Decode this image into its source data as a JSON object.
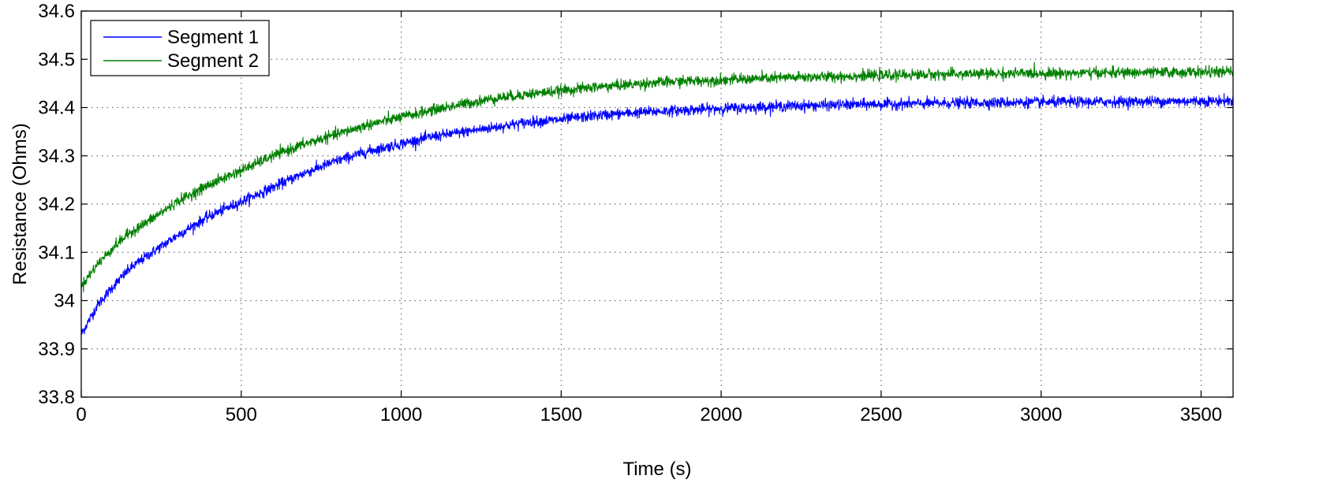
{
  "chart_data": {
    "type": "line",
    "title": "",
    "xlabel": "Time (s)",
    "ylabel": "Resistance (Ohms)",
    "xlim": [
      0,
      3600
    ],
    "ylim": [
      33.8,
      34.6
    ],
    "xticks": [
      0,
      500,
      1000,
      1500,
      2000,
      2500,
      3000,
      3500
    ],
    "xtick_labels": [
      "0",
      "500",
      "1000",
      "1500",
      "2000",
      "2500",
      "3000",
      "3500"
    ],
    "yticks": [
      33.8,
      33.9,
      34.0,
      34.1,
      34.2,
      34.3,
      34.4,
      34.5,
      34.6
    ],
    "ytick_labels": [
      "33.8",
      "33.9",
      "34",
      "34.1",
      "34.2",
      "34.3",
      "34.4",
      "34.5",
      "34.6"
    ],
    "grid": true,
    "legend_position": "top-left",
    "noise_amplitude": 0.012,
    "series": [
      {
        "name": "Segment 1",
        "color": "#0000ff",
        "x": [
          0,
          50,
          100,
          150,
          200,
          300,
          400,
          500,
          600,
          700,
          800,
          900,
          1000,
          1100,
          1200,
          1300,
          1400,
          1500,
          1600,
          1700,
          1800,
          1900,
          2000,
          2200,
          2400,
          2600,
          2800,
          3000,
          3200,
          3400,
          3600
        ],
        "values": [
          33.93,
          33.99,
          34.03,
          34.065,
          34.09,
          34.135,
          34.175,
          34.205,
          34.235,
          34.265,
          34.29,
          34.31,
          34.325,
          34.34,
          34.35,
          34.36,
          34.37,
          34.375,
          34.383,
          34.388,
          34.392,
          34.395,
          34.398,
          34.403,
          34.406,
          34.408,
          34.41,
          34.411,
          34.412,
          34.413,
          34.414
        ]
      },
      {
        "name": "Segment 2",
        "color": "#008000",
        "x": [
          0,
          50,
          100,
          150,
          200,
          300,
          400,
          500,
          600,
          700,
          800,
          900,
          1000,
          1100,
          1200,
          1300,
          1400,
          1500,
          1600,
          1700,
          1800,
          1900,
          2000,
          2200,
          2400,
          2600,
          2800,
          3000,
          3200,
          3400,
          3600
        ],
        "values": [
          34.03,
          34.075,
          34.11,
          34.14,
          34.16,
          34.205,
          34.24,
          34.27,
          34.3,
          34.325,
          34.345,
          34.365,
          34.38,
          34.395,
          34.408,
          34.42,
          34.428,
          34.435,
          34.442,
          34.447,
          34.452,
          34.455,
          34.457,
          34.462,
          34.465,
          34.468,
          34.47,
          34.471,
          34.472,
          34.473,
          34.474
        ]
      }
    ]
  }
}
